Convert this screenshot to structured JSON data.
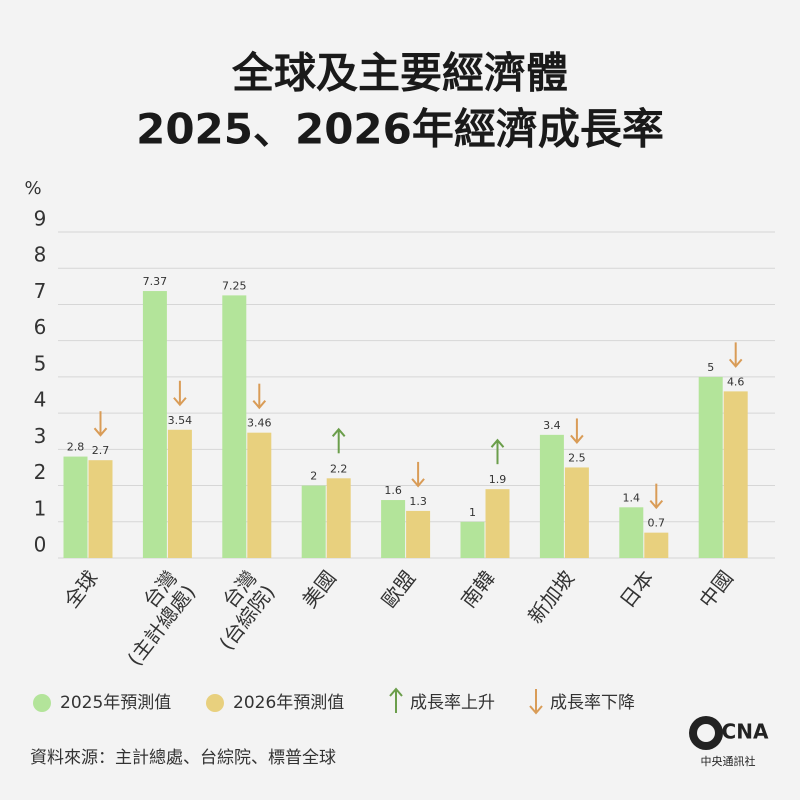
{
  "chart_data": {
    "type": "bar",
    "title": [
      "全球及主要經濟體",
      "2025、2026年經濟成長率"
    ],
    "y_label": "%",
    "categories": [
      "全球",
      "台灣\n(主計總處)",
      "台灣\n(台綜院)",
      "美國",
      "歐盟",
      "南韓",
      "新加坡",
      "日本",
      "中國"
    ],
    "series": [
      {
        "name": "2025年預測值",
        "color": "#b3e49a",
        "values": [
          2.8,
          7.37,
          7.25,
          2,
          1.6,
          1,
          3.4,
          1.4,
          5
        ]
      },
      {
        "name": "2026年預測值",
        "color": "#e8d07e",
        "values": [
          2.7,
          3.54,
          3.46,
          2.2,
          1.3,
          1.9,
          2.5,
          0.7,
          4.6
        ]
      }
    ],
    "trend_legend": [
      {
        "name": "成長率上升",
        "color": "#6b9e4b"
      },
      {
        "name": "成長率下降",
        "color": "#d99c57"
      }
    ],
    "ylim": [
      0,
      9
    ],
    "yticks": [
      0,
      1,
      2,
      3,
      4,
      5,
      6,
      7,
      8,
      9
    ],
    "grid": true,
    "source": "資料來源：主計總處、台綜院、標普全球",
    "logo": "CNA",
    "logo_caption": "中央通訊社"
  }
}
